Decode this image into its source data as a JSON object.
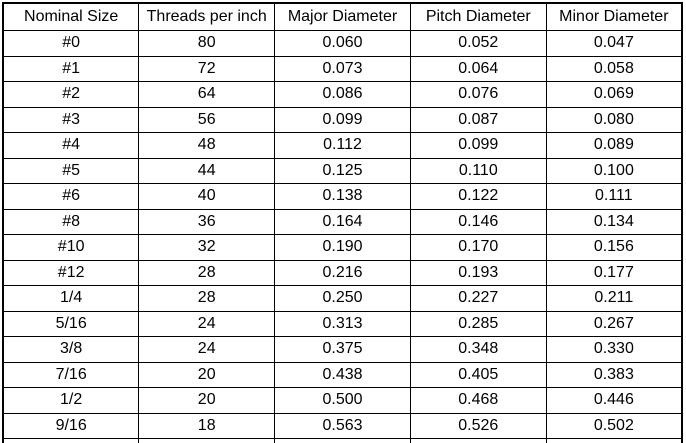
{
  "colors": {
    "border": "#000000",
    "text": "#000000",
    "background": "#ffffff"
  },
  "table": {
    "columns": [
      "Nominal Size",
      "Threads per inch",
      "Major Diameter",
      "Pitch Diameter",
      "Minor Diameter"
    ],
    "rows": [
      [
        "#0",
        "80",
        "0.060",
        "0.052",
        "0.047"
      ],
      [
        "#1",
        "72",
        "0.073",
        "0.064",
        "0.058"
      ],
      [
        "#2",
        "64",
        "0.086",
        "0.076",
        "0.069"
      ],
      [
        "#3",
        "56",
        "0.099",
        "0.087",
        "0.080"
      ],
      [
        "#4",
        "48",
        "0.112",
        "0.099",
        "0.089"
      ],
      [
        "#5",
        "44",
        "0.125",
        "0.110",
        "0.100"
      ],
      [
        "#6",
        "40",
        "0.138",
        "0.122",
        "0.111"
      ],
      [
        "#8",
        "36",
        "0.164",
        "0.146",
        "0.134"
      ],
      [
        "#10",
        "32",
        "0.190",
        "0.170",
        "0.156"
      ],
      [
        "#12",
        "28",
        "0.216",
        "0.193",
        "0.177"
      ],
      [
        "1/4",
        "28",
        "0.250",
        "0.227",
        "0.211"
      ],
      [
        "5/16",
        "24",
        "0.313",
        "0.285",
        "0.267"
      ],
      [
        "3/8",
        "24",
        "0.375",
        "0.348",
        "0.330"
      ],
      [
        "7/16",
        "20",
        "0.438",
        "0.405",
        "0.383"
      ],
      [
        "1/2",
        "20",
        "0.500",
        "0.468",
        "0.446"
      ],
      [
        "9/16",
        "18",
        "0.563",
        "0.526",
        "0.502"
      ]
    ]
  }
}
